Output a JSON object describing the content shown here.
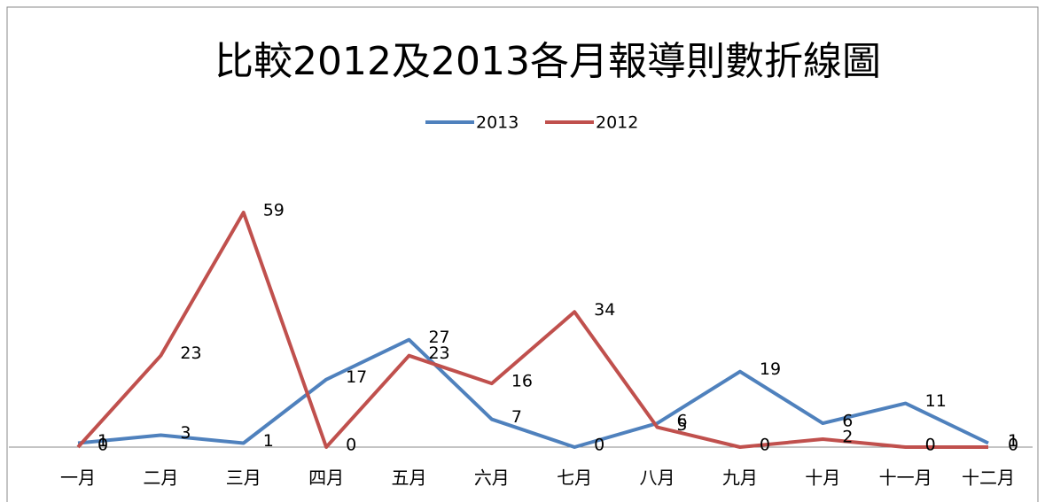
{
  "chart_data": {
    "type": "line",
    "title": "比較2012及2013各月報導則數折線圖",
    "categories": [
      "一月",
      "二月",
      "三月",
      "四月",
      "五月",
      "六月",
      "七月",
      "八月",
      "九月",
      "十月",
      "十一月",
      "十二月"
    ],
    "series": [
      {
        "name": "2013",
        "color": "#4f81bd",
        "values": [
          1,
          3,
          1,
          17,
          27,
          7,
          0,
          6,
          19,
          6,
          11,
          1
        ]
      },
      {
        "name": "2012",
        "color": "#c0504d",
        "values": [
          0,
          23,
          59,
          0,
          23,
          16,
          34,
          5,
          0,
          2,
          0,
          0
        ]
      }
    ],
    "legend": "top"
  }
}
